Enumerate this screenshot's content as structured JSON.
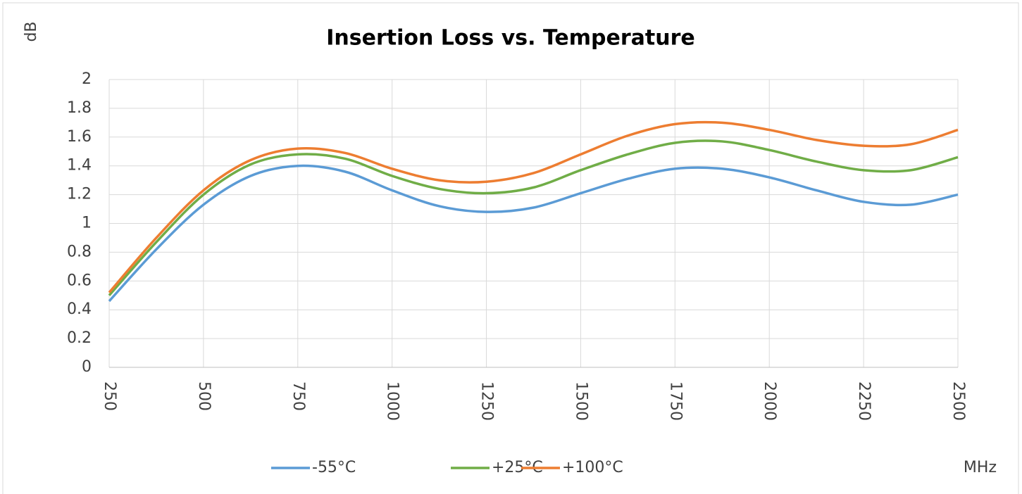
{
  "chart_data": {
    "type": "line",
    "title": "Insertion Loss vs. Temperature",
    "y_label": "dB",
    "x_label": "MHz",
    "x": [
      250,
      375,
      500,
      625,
      750,
      875,
      1000,
      1125,
      1250,
      1375,
      1500,
      1625,
      1750,
      1875,
      2000,
      2125,
      2250,
      2375,
      2500
    ],
    "series": [
      {
        "name": "-55°C",
        "color": "#5b9bd5",
        "values": [
          0.46,
          0.82,
          1.13,
          1.33,
          1.4,
          1.36,
          1.23,
          1.12,
          1.08,
          1.11,
          1.21,
          1.31,
          1.38,
          1.38,
          1.32,
          1.23,
          1.15,
          1.13,
          1.2
        ]
      },
      {
        "name": "+25°C",
        "color": "#70ad47",
        "values": [
          0.5,
          0.87,
          1.2,
          1.41,
          1.48,
          1.45,
          1.33,
          1.24,
          1.21,
          1.25,
          1.37,
          1.48,
          1.56,
          1.57,
          1.51,
          1.43,
          1.37,
          1.37,
          1.46
        ]
      },
      {
        "name": "+100°C",
        "color": "#ed7d31",
        "values": [
          0.52,
          0.9,
          1.23,
          1.44,
          1.52,
          1.49,
          1.38,
          1.3,
          1.29,
          1.35,
          1.48,
          1.61,
          1.69,
          1.7,
          1.65,
          1.58,
          1.54,
          1.55,
          1.65
        ]
      }
    ],
    "xlim": [
      250,
      2500
    ],
    "xticks": [
      250,
      500,
      750,
      1000,
      1250,
      1500,
      1750,
      2000,
      2250,
      2500
    ],
    "ylim": [
      0,
      2
    ],
    "yticks": [
      0,
      0.2,
      0.4,
      0.6,
      0.8,
      1,
      1.2,
      1.4,
      1.6,
      1.8,
      2
    ],
    "grid": true,
    "legend": "bottom"
  }
}
